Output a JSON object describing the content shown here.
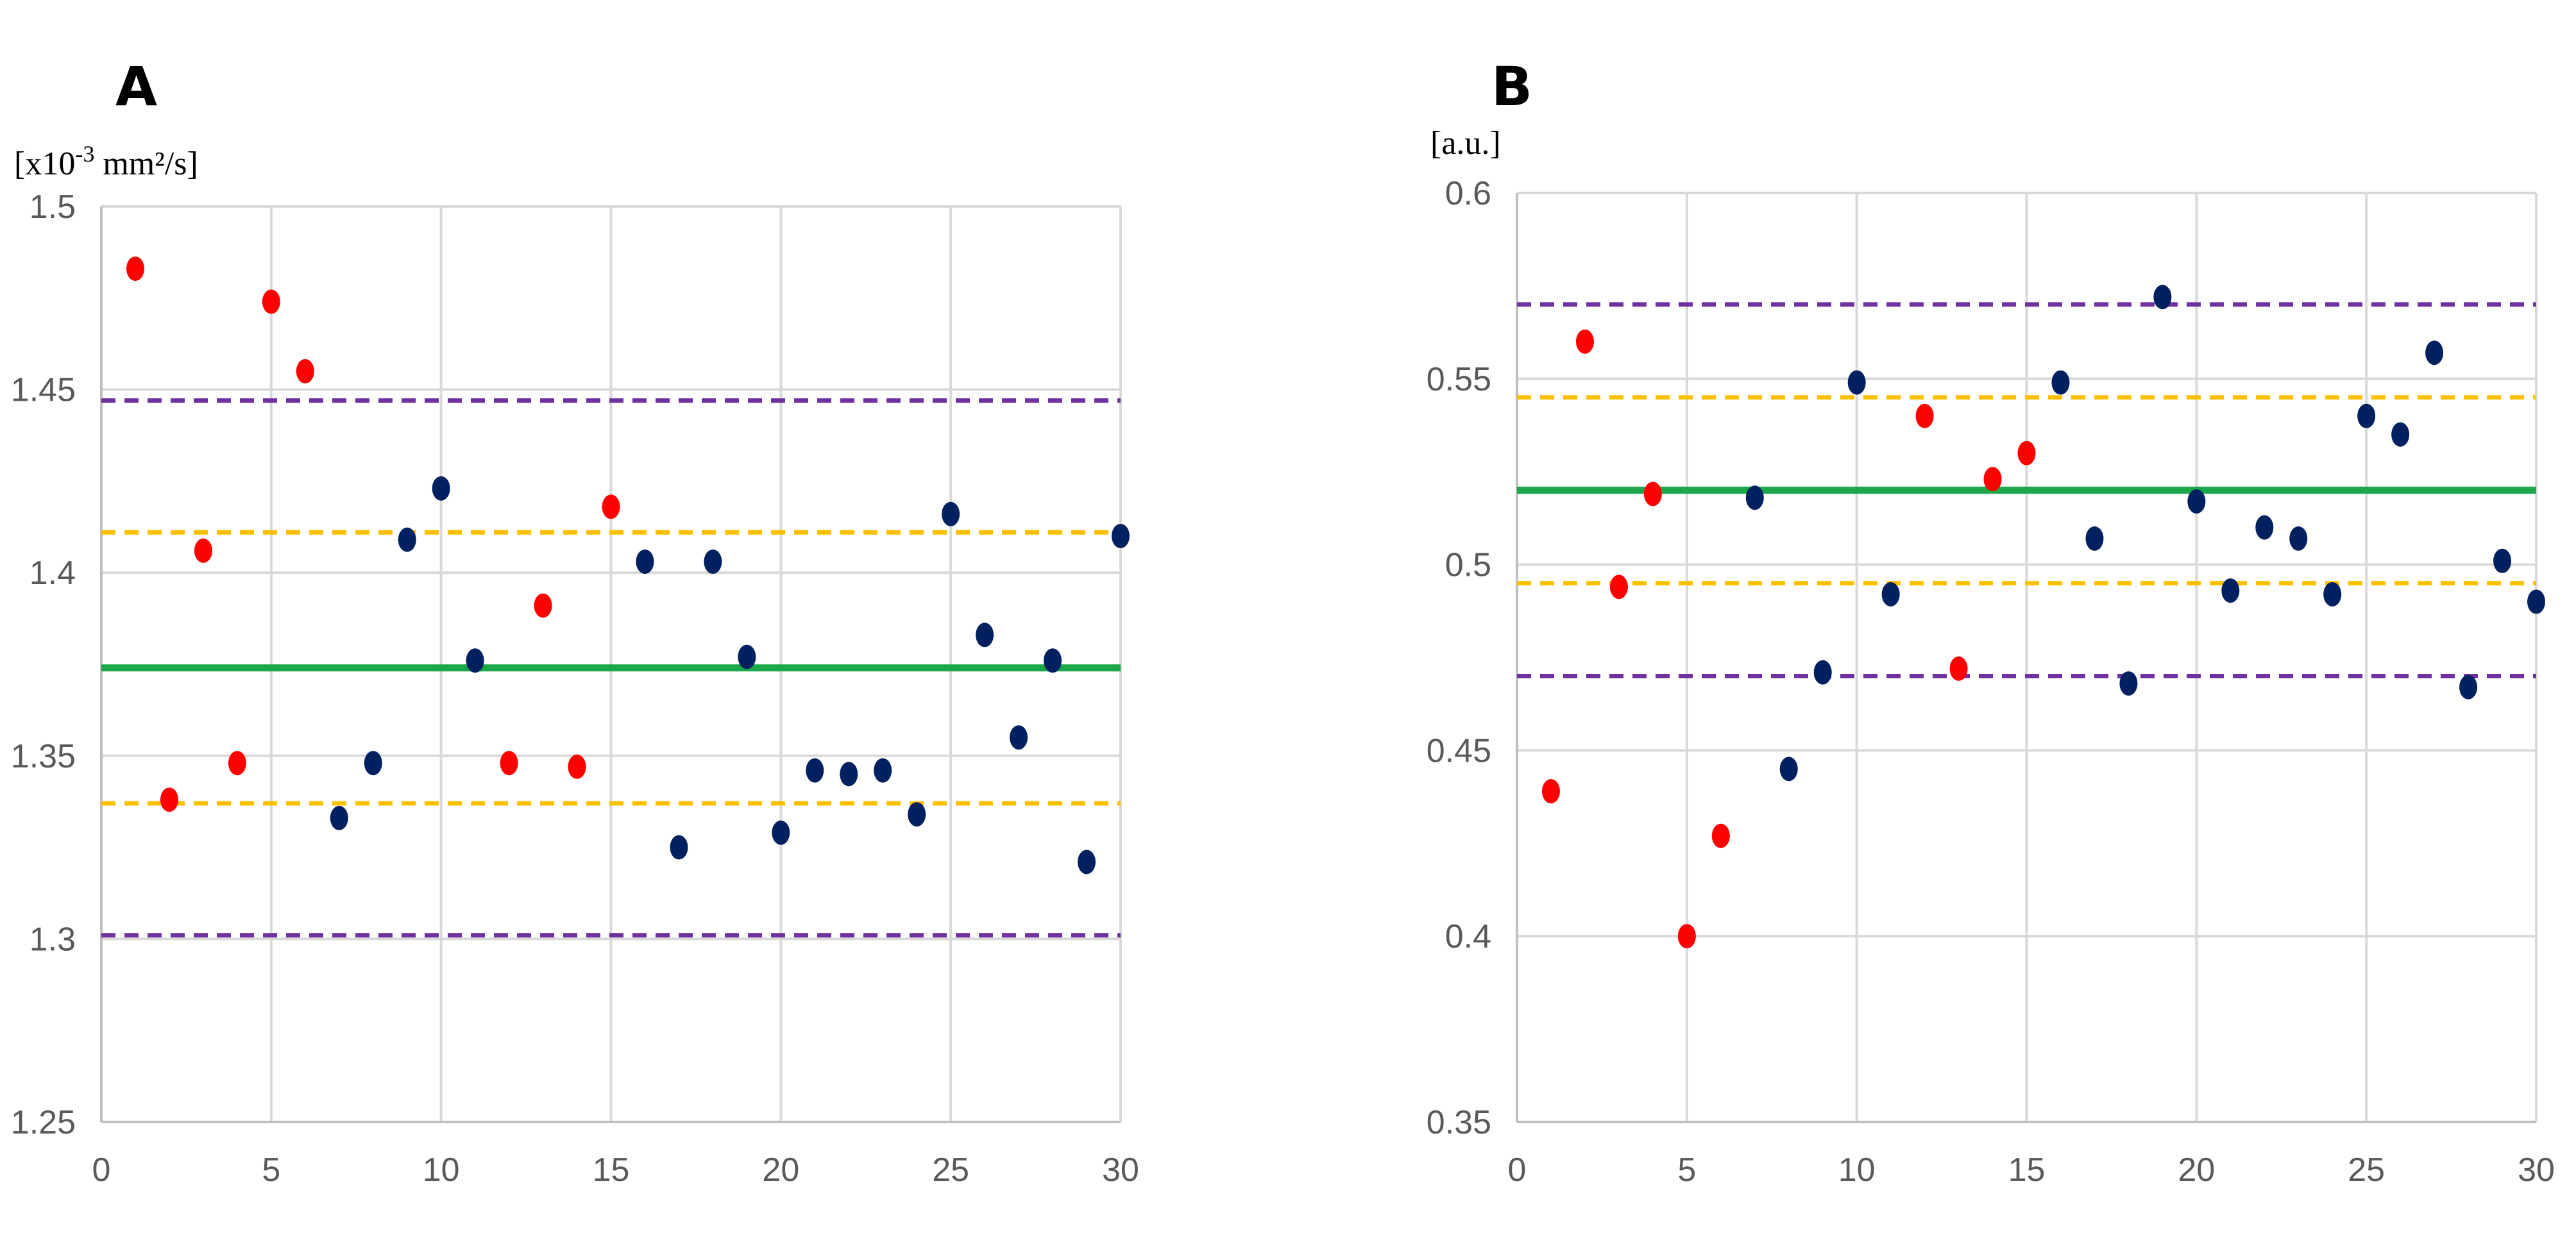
{
  "chart_data": [
    {
      "type": "scatter",
      "panel_label": "A",
      "unit_label": {
        "base": "[x10",
        "exp": "-3",
        "rest": " mm²/s]"
      },
      "xlim": [
        0,
        30
      ],
      "ylim": [
        1.25,
        1.5
      ],
      "x_ticks": [
        "0",
        "5",
        "10",
        "15",
        "20",
        "25",
        "30"
      ],
      "x_tick_values": [
        0,
        5,
        10,
        15,
        20,
        25,
        30
      ],
      "y_ticks": [
        "1.25",
        "1.3",
        "1.35",
        "1.4",
        "1.45",
        "1.5"
      ],
      "y_tick_values": [
        1.25,
        1.3,
        1.35,
        1.4,
        1.45,
        1.5
      ],
      "grid": true,
      "reference_lines": [
        {
          "name": "mean",
          "y": 1.374,
          "color": "#1aa84a",
          "style": "solid"
        },
        {
          "name": "upper-inner-limit",
          "y": 1.411,
          "color": "#ffc000",
          "style": "dashed"
        },
        {
          "name": "lower-inner-limit",
          "y": 1.337,
          "color": "#ffc000",
          "style": "dashed"
        },
        {
          "name": "upper-outer-limit",
          "y": 1.447,
          "color": "#7030a0",
          "style": "dashed"
        },
        {
          "name": "lower-outer-limit",
          "y": 1.301,
          "color": "#7030a0",
          "style": "dashed"
        }
      ],
      "series": [
        {
          "name": "red",
          "color": "#ff0000",
          "x": [
            1,
            2,
            3,
            4,
            5,
            6,
            12,
            13,
            14,
            15
          ],
          "y": [
            1.483,
            1.338,
            1.406,
            1.348,
            1.474,
            1.455,
            1.348,
            1.391,
            1.347,
            1.418
          ]
        },
        {
          "name": "navy",
          "color": "#002060",
          "x": [
            7,
            8,
            9,
            10,
            11,
            16,
            17,
            18,
            19,
            20,
            21,
            22,
            23,
            24,
            25,
            26,
            27,
            28,
            29,
            30
          ],
          "y": [
            1.333,
            1.348,
            1.409,
            1.423,
            1.376,
            1.403,
            1.325,
            1.403,
            1.377,
            1.329,
            1.346,
            1.345,
            1.346,
            1.334,
            1.416,
            1.383,
            1.355,
            1.376,
            1.321,
            1.41
          ]
        }
      ]
    },
    {
      "type": "scatter",
      "panel_label": "B",
      "unit_label": {
        "base": "[a.u.]",
        "exp": "",
        "rest": ""
      },
      "xlim": [
        0,
        30
      ],
      "ylim": [
        0.35,
        0.6
      ],
      "x_ticks": [
        "0",
        "5",
        "10",
        "15",
        "20",
        "25",
        "30"
      ],
      "x_tick_values": [
        0,
        5,
        10,
        15,
        20,
        25,
        30
      ],
      "y_ticks": [
        "0.35",
        "0.4",
        "0.45",
        "0.5",
        "0.55",
        "0.6"
      ],
      "y_tick_values": [
        0.35,
        0.4,
        0.45,
        0.5,
        0.55,
        0.6
      ],
      "grid": true,
      "reference_lines": [
        {
          "name": "mean",
          "y": 0.52,
          "color": "#1aa84a",
          "style": "solid"
        },
        {
          "name": "upper-inner-limit",
          "y": 0.545,
          "color": "#ffc000",
          "style": "dashed"
        },
        {
          "name": "lower-inner-limit",
          "y": 0.495,
          "color": "#ffc000",
          "style": "dashed"
        },
        {
          "name": "upper-outer-limit",
          "y": 0.57,
          "color": "#7030a0",
          "style": "dashed"
        },
        {
          "name": "lower-outer-limit",
          "y": 0.47,
          "color": "#7030a0",
          "style": "dashed"
        }
      ],
      "series": [
        {
          "name": "red",
          "color": "#ff0000",
          "x": [
            1,
            2,
            3,
            4,
            5,
            6,
            12,
            13,
            14,
            15
          ],
          "y": [
            0.439,
            0.56,
            0.494,
            0.519,
            0.4,
            0.427,
            0.54,
            0.472,
            0.523,
            0.53
          ]
        },
        {
          "name": "navy",
          "color": "#002060",
          "x": [
            7,
            8,
            9,
            10,
            11,
            16,
            17,
            18,
            19,
            20,
            21,
            22,
            23,
            24,
            25,
            26,
            27,
            28,
            29,
            30
          ],
          "y": [
            0.518,
            0.445,
            0.471,
            0.549,
            0.492,
            0.549,
            0.507,
            0.468,
            0.572,
            0.517,
            0.493,
            0.51,
            0.507,
            0.492,
            0.54,
            0.535,
            0.557,
            0.467,
            0.501,
            0.49
          ]
        }
      ]
    }
  ]
}
